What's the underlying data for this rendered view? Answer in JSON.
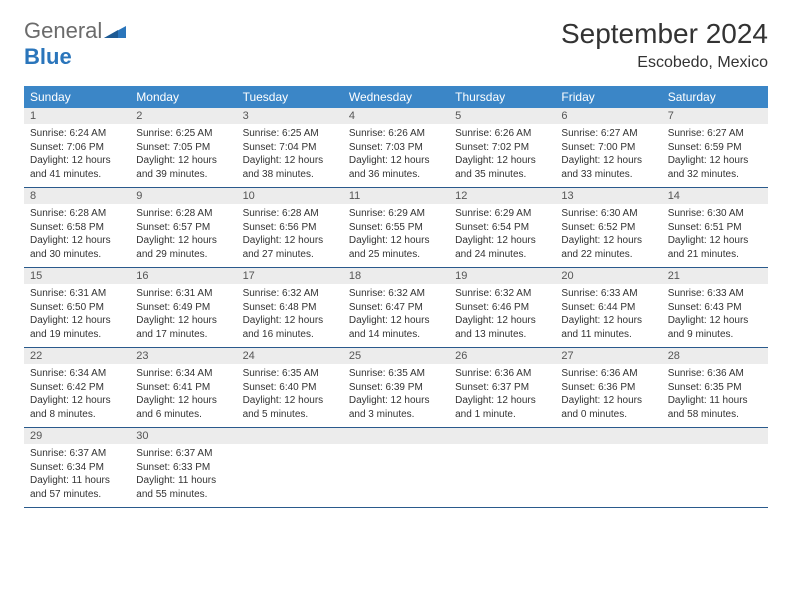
{
  "logo": {
    "general": "General",
    "blue": "Blue"
  },
  "title": "September 2024",
  "location": "Escobedo, Mexico",
  "colors": {
    "header_bg": "#3b86c7",
    "header_text": "#ffffff",
    "daynum_bg": "#ececec",
    "row_border": "#2a5a8c",
    "logo_gray": "#6b6b6b",
    "logo_blue": "#2a75bb",
    "body_text": "#333333"
  },
  "weekdays": [
    "Sunday",
    "Monday",
    "Tuesday",
    "Wednesday",
    "Thursday",
    "Friday",
    "Saturday"
  ],
  "weeks": [
    [
      {
        "n": "1",
        "sr": "6:24 AM",
        "ss": "7:06 PM",
        "dl": "12 hours and 41 minutes."
      },
      {
        "n": "2",
        "sr": "6:25 AM",
        "ss": "7:05 PM",
        "dl": "12 hours and 39 minutes."
      },
      {
        "n": "3",
        "sr": "6:25 AM",
        "ss": "7:04 PM",
        "dl": "12 hours and 38 minutes."
      },
      {
        "n": "4",
        "sr": "6:26 AM",
        "ss": "7:03 PM",
        "dl": "12 hours and 36 minutes."
      },
      {
        "n": "5",
        "sr": "6:26 AM",
        "ss": "7:02 PM",
        "dl": "12 hours and 35 minutes."
      },
      {
        "n": "6",
        "sr": "6:27 AM",
        "ss": "7:00 PM",
        "dl": "12 hours and 33 minutes."
      },
      {
        "n": "7",
        "sr": "6:27 AM",
        "ss": "6:59 PM",
        "dl": "12 hours and 32 minutes."
      }
    ],
    [
      {
        "n": "8",
        "sr": "6:28 AM",
        "ss": "6:58 PM",
        "dl": "12 hours and 30 minutes."
      },
      {
        "n": "9",
        "sr": "6:28 AM",
        "ss": "6:57 PM",
        "dl": "12 hours and 29 minutes."
      },
      {
        "n": "10",
        "sr": "6:28 AM",
        "ss": "6:56 PM",
        "dl": "12 hours and 27 minutes."
      },
      {
        "n": "11",
        "sr": "6:29 AM",
        "ss": "6:55 PM",
        "dl": "12 hours and 25 minutes."
      },
      {
        "n": "12",
        "sr": "6:29 AM",
        "ss": "6:54 PM",
        "dl": "12 hours and 24 minutes."
      },
      {
        "n": "13",
        "sr": "6:30 AM",
        "ss": "6:52 PM",
        "dl": "12 hours and 22 minutes."
      },
      {
        "n": "14",
        "sr": "6:30 AM",
        "ss": "6:51 PM",
        "dl": "12 hours and 21 minutes."
      }
    ],
    [
      {
        "n": "15",
        "sr": "6:31 AM",
        "ss": "6:50 PM",
        "dl": "12 hours and 19 minutes."
      },
      {
        "n": "16",
        "sr": "6:31 AM",
        "ss": "6:49 PM",
        "dl": "12 hours and 17 minutes."
      },
      {
        "n": "17",
        "sr": "6:32 AM",
        "ss": "6:48 PM",
        "dl": "12 hours and 16 minutes."
      },
      {
        "n": "18",
        "sr": "6:32 AM",
        "ss": "6:47 PM",
        "dl": "12 hours and 14 minutes."
      },
      {
        "n": "19",
        "sr": "6:32 AM",
        "ss": "6:46 PM",
        "dl": "12 hours and 13 minutes."
      },
      {
        "n": "20",
        "sr": "6:33 AM",
        "ss": "6:44 PM",
        "dl": "12 hours and 11 minutes."
      },
      {
        "n": "21",
        "sr": "6:33 AM",
        "ss": "6:43 PM",
        "dl": "12 hours and 9 minutes."
      }
    ],
    [
      {
        "n": "22",
        "sr": "6:34 AM",
        "ss": "6:42 PM",
        "dl": "12 hours and 8 minutes."
      },
      {
        "n": "23",
        "sr": "6:34 AM",
        "ss": "6:41 PM",
        "dl": "12 hours and 6 minutes."
      },
      {
        "n": "24",
        "sr": "6:35 AM",
        "ss": "6:40 PM",
        "dl": "12 hours and 5 minutes."
      },
      {
        "n": "25",
        "sr": "6:35 AM",
        "ss": "6:39 PM",
        "dl": "12 hours and 3 minutes."
      },
      {
        "n": "26",
        "sr": "6:36 AM",
        "ss": "6:37 PM",
        "dl": "12 hours and 1 minute."
      },
      {
        "n": "27",
        "sr": "6:36 AM",
        "ss": "6:36 PM",
        "dl": "12 hours and 0 minutes."
      },
      {
        "n": "28",
        "sr": "6:36 AM",
        "ss": "6:35 PM",
        "dl": "11 hours and 58 minutes."
      }
    ],
    [
      {
        "n": "29",
        "sr": "6:37 AM",
        "ss": "6:34 PM",
        "dl": "11 hours and 57 minutes."
      },
      {
        "n": "30",
        "sr": "6:37 AM",
        "ss": "6:33 PM",
        "dl": "11 hours and 55 minutes."
      },
      null,
      null,
      null,
      null,
      null
    ]
  ],
  "labels": {
    "sunrise": "Sunrise: ",
    "sunset": "Sunset: ",
    "daylight": "Daylight: "
  }
}
